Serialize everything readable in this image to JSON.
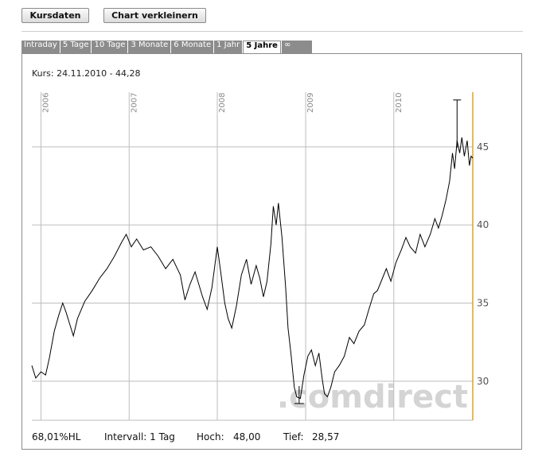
{
  "toolbar": {
    "kursdaten_label": "Kursdaten",
    "chart_label": "Chart verkleinern"
  },
  "tabs": [
    {
      "label": "Intraday",
      "active": false
    },
    {
      "label": "5 Tage",
      "active": false
    },
    {
      "label": "10 Tage",
      "active": false
    },
    {
      "label": "3 Monate",
      "active": false
    },
    {
      "label": "6 Monate",
      "active": false
    },
    {
      "label": "1 Jahr",
      "active": false
    },
    {
      "label": "5 Jahre",
      "active": true
    },
    {
      "label": "∞",
      "active": false
    }
  ],
  "kurs_label": "Kurs: 24.11.2010 - 44,28",
  "watermark": ".comdirect",
  "footer": {
    "hl": "68,01%HL",
    "intervall": "Intervall: 1 Tag",
    "hoch_label": "Hoch:",
    "hoch_value": "48,00",
    "tief_label": "Tief:",
    "tief_value": "28,57"
  },
  "colors": {
    "tab_bg": "#8c8c8c",
    "grid": "#bdbdbd",
    "axis_accent": "#e0a020",
    "line": "#000000",
    "watermark": "#d4d4d4"
  },
  "chart_data": {
    "type": "line",
    "x_ticks": [
      "2006",
      "2007",
      "2008",
      "2009",
      "2010"
    ],
    "y_ticks": [
      30,
      35,
      40,
      45
    ],
    "ylim": [
      27.5,
      48.5
    ],
    "x_range": [
      "2005-11-24",
      "2010-11-24"
    ],
    "grid": true,
    "series": [
      {
        "values": [
          [
            "2005-11-24",
            31.0
          ],
          [
            "2005-12-10",
            30.2
          ],
          [
            "2006-01-01",
            30.6
          ],
          [
            "2006-01-20",
            30.4
          ],
          [
            "2006-02-05",
            31.5
          ],
          [
            "2006-02-25",
            33.2
          ],
          [
            "2006-03-15",
            34.2
          ],
          [
            "2006-04-01",
            35.0
          ],
          [
            "2006-04-15",
            34.4
          ],
          [
            "2006-05-01",
            33.6
          ],
          [
            "2006-05-15",
            32.9
          ],
          [
            "2006-06-01",
            34.0
          ],
          [
            "2006-07-01",
            35.1
          ],
          [
            "2006-08-01",
            35.8
          ],
          [
            "2006-09-01",
            36.6
          ],
          [
            "2006-10-01",
            37.2
          ],
          [
            "2006-11-01",
            38.0
          ],
          [
            "2006-12-01",
            38.9
          ],
          [
            "2006-12-20",
            39.4
          ],
          [
            "2007-01-10",
            38.6
          ],
          [
            "2007-02-01",
            39.1
          ],
          [
            "2007-03-01",
            38.4
          ],
          [
            "2007-04-01",
            38.6
          ],
          [
            "2007-05-01",
            38.0
          ],
          [
            "2007-06-01",
            37.2
          ],
          [
            "2007-07-01",
            37.8
          ],
          [
            "2007-08-01",
            36.8
          ],
          [
            "2007-08-20",
            35.2
          ],
          [
            "2007-09-10",
            36.2
          ],
          [
            "2007-10-01",
            37.0
          ],
          [
            "2007-11-01",
            35.4
          ],
          [
            "2007-11-20",
            34.6
          ],
          [
            "2007-12-10",
            36.0
          ],
          [
            "2008-01-01",
            38.6
          ],
          [
            "2008-01-15",
            37.0
          ],
          [
            "2008-02-01",
            35.0
          ],
          [
            "2008-02-15",
            34.0
          ],
          [
            "2008-03-01",
            33.4
          ],
          [
            "2008-03-20",
            34.8
          ],
          [
            "2008-04-10",
            36.8
          ],
          [
            "2008-05-01",
            37.8
          ],
          [
            "2008-05-20",
            36.2
          ],
          [
            "2008-06-10",
            37.4
          ],
          [
            "2008-06-25",
            36.6
          ],
          [
            "2008-07-10",
            35.4
          ],
          [
            "2008-07-25",
            36.4
          ],
          [
            "2008-08-10",
            38.8
          ],
          [
            "2008-08-20",
            41.2
          ],
          [
            "2008-09-01",
            40.0
          ],
          [
            "2008-09-10",
            41.4
          ],
          [
            "2008-09-25",
            39.2
          ],
          [
            "2008-10-10",
            36.0
          ],
          [
            "2008-10-20",
            33.4
          ],
          [
            "2008-11-01",
            31.8
          ],
          [
            "2008-11-15",
            29.6
          ],
          [
            "2008-11-25",
            29.0
          ],
          [
            "2008-12-10",
            28.9
          ],
          [
            "2008-12-25",
            30.4
          ],
          [
            "2009-01-10",
            31.6
          ],
          [
            "2009-01-25",
            32.0
          ],
          [
            "2009-02-10",
            31.0
          ],
          [
            "2009-02-25",
            31.8
          ],
          [
            "2009-03-10",
            30.2
          ],
          [
            "2009-03-20",
            29.2
          ],
          [
            "2009-04-01",
            29.0
          ],
          [
            "2009-04-15",
            29.6
          ],
          [
            "2009-05-01",
            30.6
          ],
          [
            "2009-05-20",
            31.0
          ],
          [
            "2009-06-10",
            31.6
          ],
          [
            "2009-07-01",
            32.8
          ],
          [
            "2009-07-20",
            32.4
          ],
          [
            "2009-08-10",
            33.2
          ],
          [
            "2009-09-01",
            33.6
          ],
          [
            "2009-09-20",
            34.6
          ],
          [
            "2009-10-10",
            35.6
          ],
          [
            "2009-10-25",
            35.8
          ],
          [
            "2009-11-10",
            36.4
          ],
          [
            "2009-12-01",
            37.2
          ],
          [
            "2009-12-20",
            36.4
          ],
          [
            "2010-01-10",
            37.6
          ],
          [
            "2010-02-01",
            38.4
          ],
          [
            "2010-02-20",
            39.2
          ],
          [
            "2010-03-10",
            38.6
          ],
          [
            "2010-04-01",
            38.2
          ],
          [
            "2010-04-20",
            39.4
          ],
          [
            "2010-05-10",
            38.6
          ],
          [
            "2010-06-01",
            39.4
          ],
          [
            "2010-06-20",
            40.4
          ],
          [
            "2010-07-05",
            39.8
          ],
          [
            "2010-07-20",
            40.6
          ],
          [
            "2010-08-05",
            41.6
          ],
          [
            "2010-08-20",
            42.8
          ],
          [
            "2010-09-01",
            44.6
          ],
          [
            "2010-09-10",
            43.6
          ],
          [
            "2010-09-20",
            45.4
          ],
          [
            "2010-10-01",
            44.6
          ],
          [
            "2010-10-10",
            45.6
          ],
          [
            "2010-10-20",
            44.4
          ],
          [
            "2010-11-01",
            45.4
          ],
          [
            "2010-11-10",
            43.8
          ],
          [
            "2010-11-17",
            44.4
          ],
          [
            "2010-11-24",
            44.28
          ]
        ]
      }
    ],
    "high_marker": {
      "date": "2010-09-20",
      "value": 48.0
    },
    "low_marker": {
      "date": "2008-12-05",
      "value": 28.57
    }
  }
}
